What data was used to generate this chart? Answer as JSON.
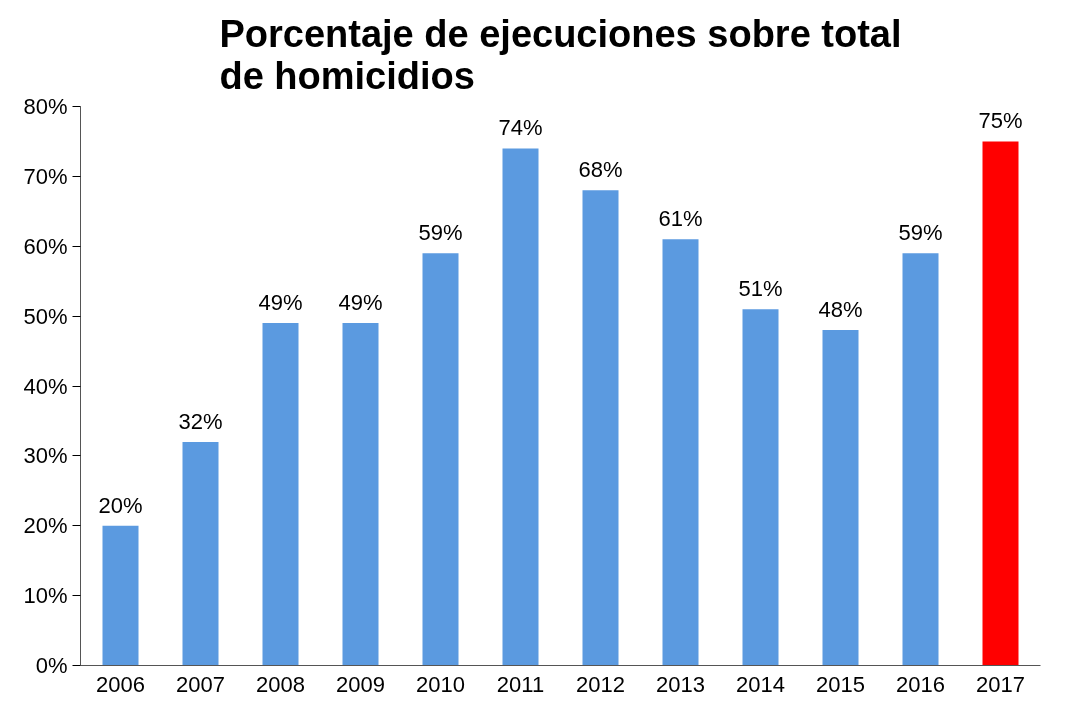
{
  "chart_data": {
    "type": "bar",
    "title": "Porcentaje de ejecuciones sobre total de homicidios",
    "categories": [
      "2006",
      "2007",
      "2008",
      "2009",
      "2010",
      "2011",
      "2012",
      "2013",
      "2014",
      "2015",
      "2016",
      "2017"
    ],
    "values": [
      20,
      32,
      49,
      49,
      59,
      74,
      68,
      61,
      51,
      48,
      59,
      75
    ],
    "colors": [
      "#5b9ae0",
      "#5b9ae0",
      "#5b9ae0",
      "#5b9ae0",
      "#5b9ae0",
      "#5b9ae0",
      "#5b9ae0",
      "#5b9ae0",
      "#5b9ae0",
      "#5b9ae0",
      "#5b9ae0",
      "#ff0000"
    ],
    "value_labels": [
      "20%",
      "32%",
      "49%",
      "49%",
      "59%",
      "74%",
      "68%",
      "61%",
      "51%",
      "48%",
      "59%",
      "75%"
    ],
    "ylim": [
      0,
      80
    ],
    "yticks": [
      {
        "value": 0,
        "label": "0%"
      },
      {
        "value": 10,
        "label": "10%"
      },
      {
        "value": 20,
        "label": "20%"
      },
      {
        "value": 30,
        "label": "30%"
      },
      {
        "value": 40,
        "label": "40%"
      },
      {
        "value": 50,
        "label": "50%"
      },
      {
        "value": 60,
        "label": "60%"
      },
      {
        "value": 70,
        "label": "70%"
      },
      {
        "value": 80,
        "label": "80%"
      }
    ],
    "grid": false
  }
}
